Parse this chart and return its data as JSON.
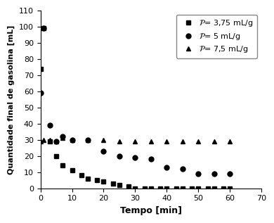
{
  "title": "",
  "xlabel": "Tempo [min]",
  "ylabel": "Quantidade final de gasolina [mL]",
  "xlim": [
    0,
    70
  ],
  "ylim": [
    0,
    110
  ],
  "xticks": [
    0,
    10,
    20,
    30,
    40,
    50,
    60,
    70
  ],
  "yticks": [
    0,
    10,
    20,
    30,
    40,
    50,
    60,
    70,
    80,
    90,
    100,
    110
  ],
  "series": [
    {
      "label": "P= 3,75 mL/g",
      "marker": "s",
      "color": "#000000",
      "x": [
        0,
        1,
        3,
        5,
        7,
        10,
        13,
        15,
        18,
        20,
        23,
        25,
        28,
        30,
        33,
        35,
        38,
        40,
        43,
        45,
        48,
        50,
        53,
        55,
        58,
        60
      ],
      "y": [
        74,
        99,
        29,
        20,
        14,
        11,
        8,
        6,
        5,
        4,
        3,
        2,
        1,
        0,
        0,
        0,
        0,
        0,
        0,
        0,
        0,
        0,
        0,
        0,
        0,
        0
      ]
    },
    {
      "label": "P= 5 mL/g",
      "marker": "o",
      "color": "#000000",
      "x": [
        0,
        1,
        3,
        5,
        7,
        10,
        15,
        20,
        25,
        30,
        35,
        40,
        45,
        50,
        55,
        60
      ],
      "y": [
        59,
        99,
        39,
        29,
        32,
        30,
        30,
        23,
        20,
        19,
        18,
        13,
        12,
        9,
        9,
        9
      ]
    },
    {
      "label": "P= 7,5 mL/g",
      "marker": "^",
      "color": "#000000",
      "x": [
        0,
        1,
        3,
        5,
        7,
        10,
        15,
        20,
        25,
        30,
        35,
        40,
        45,
        50,
        55,
        60
      ],
      "y": [
        29,
        30,
        30,
        29,
        31,
        30,
        30,
        30,
        29,
        29,
        29,
        29,
        29,
        29,
        29,
        29
      ]
    }
  ],
  "background_color": "#ffffff",
  "font_size": 8,
  "axis_label_fontsize": 9,
  "marker_size": 5
}
